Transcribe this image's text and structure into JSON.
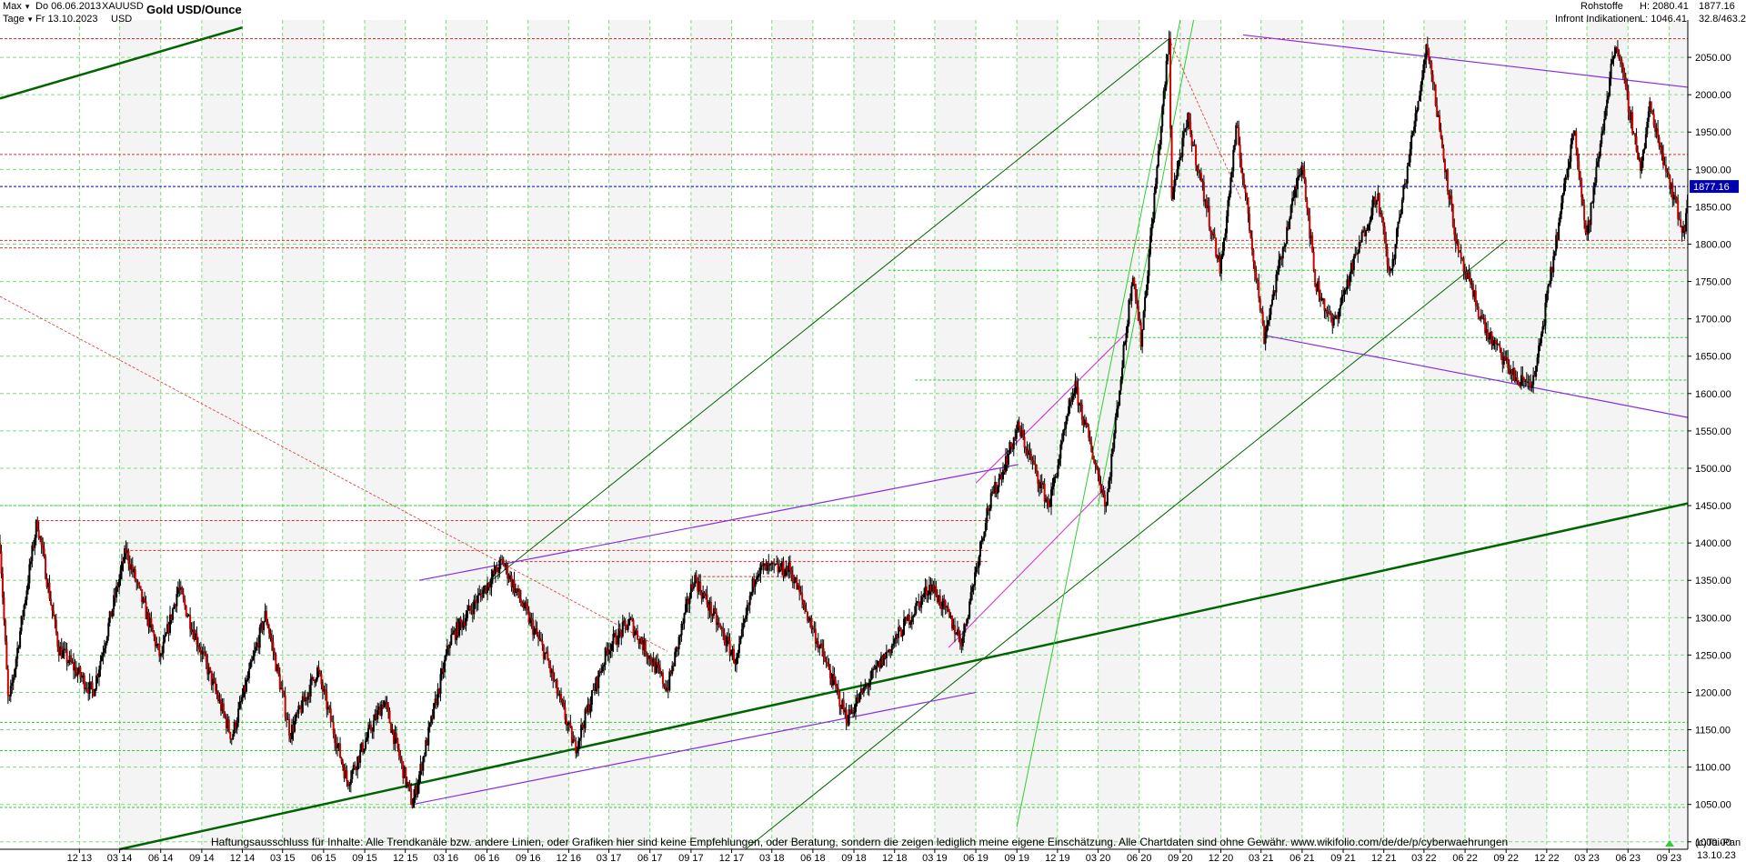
{
  "header": {
    "range_label": "Max",
    "interval_label": "Tage",
    "date_from": "Do 06.06.2013",
    "date_to": "Fr 13.10.2023",
    "symbol": "XAUUSD",
    "currency": "USD",
    "title": "Gold USD/Ounce",
    "category": "Rohstoffe",
    "source": "Infront Indikationen",
    "high_label": "H: 2080.41",
    "low_label": "L: 1046.41",
    "last_price": "1877.16",
    "change_label": "32.8/463.2"
  },
  "footer": {
    "disclaimer": "Haftungsausschluss für Inhalte: Alle Trendkanäle bzw. andere Linien, oder Grafiken hier sind keine Empfehlungen, oder Beratung, sondern die zeigen lediglich meine eigene Einschätzung. Alle Chartdaten sind ohne Gewähr.  www.wikifolio.com/de/de/p/cyberwaehrungen",
    "copyright": "(c)Tai-Pan",
    "last_date": "13.10.23"
  },
  "colors": {
    "grid": "#7ddc7d",
    "candle": "#000000",
    "candle_accent": "#cc0000",
    "trend_green": "#006400",
    "trend_light": "#32cd32",
    "trend_purple": "#8a2be2",
    "trend_magenta": "#e020e0",
    "resistance_red": "#e03030",
    "last_price_line": "#0000cc",
    "price_badge_bg": "#0000aa"
  },
  "chart_data": {
    "type": "candlestick",
    "title": "Gold USD/Ounce",
    "y_axis_ticks": [
      1000,
      1050,
      1100,
      1150,
      1200,
      1250,
      1300,
      1350,
      1400,
      1450,
      1500,
      1550,
      1600,
      1650,
      1700,
      1750,
      1800,
      1850,
      1900,
      1950,
      2000,
      2050
    ],
    "x_axis_ticks": [
      "12 13",
      "03 14",
      "06 14",
      "09 14",
      "12 14",
      "03 15",
      "06 15",
      "09 15",
      "12 15",
      "03 16",
      "06 16",
      "09 16",
      "12 16",
      "03 17",
      "06 17",
      "09 17",
      "12 17",
      "03 18",
      "06 18",
      "09 18",
      "12 18",
      "03 19",
      "06 19",
      "09 19",
      "12 19",
      "03 20",
      "06 20",
      "09 20",
      "12 20",
      "03 21",
      "06 21",
      "09 21",
      "12 21",
      "03 22",
      "06 22",
      "09 22",
      "12 22",
      "03 23",
      "06 23",
      "09 23"
    ],
    "x_range": [
      "2013-06-06",
      "2023-10-13"
    ],
    "ylim": [
      990,
      2100
    ],
    "grid": true,
    "high": 2080.41,
    "low": 1046.41,
    "last": 1877.16,
    "price_path": [
      [
        "2013-06-06",
        1400
      ],
      [
        "2013-06-25",
        1180
      ],
      [
        "2013-08-28",
        1430
      ],
      [
        "2013-10-15",
        1260
      ],
      [
        "2013-12-31",
        1200
      ],
      [
        "2014-03-15",
        1390
      ],
      [
        "2014-06-01",
        1245
      ],
      [
        "2014-07-10",
        1340
      ],
      [
        "2014-09-15",
        1230
      ],
      [
        "2014-11-07",
        1140
      ],
      [
        "2015-01-22",
        1305
      ],
      [
        "2015-03-18",
        1145
      ],
      [
        "2015-05-18",
        1230
      ],
      [
        "2015-07-24",
        1080
      ],
      [
        "2015-10-14",
        1190
      ],
      [
        "2015-12-17",
        1050
      ],
      [
        "2016-03-10",
        1270
      ],
      [
        "2016-07-06",
        1375
      ],
      [
        "2016-10-10",
        1250
      ],
      [
        "2016-12-15",
        1125
      ],
      [
        "2017-02-27",
        1260
      ],
      [
        "2017-04-17",
        1295
      ],
      [
        "2017-07-10",
        1205
      ],
      [
        "2017-09-08",
        1355
      ],
      [
        "2017-12-12",
        1240
      ],
      [
        "2018-01-25",
        1365
      ],
      [
        "2018-04-11",
        1365
      ],
      [
        "2018-08-16",
        1165
      ],
      [
        "2018-10-26",
        1235
      ],
      [
        "2019-02-20",
        1345
      ],
      [
        "2019-05-01",
        1268
      ],
      [
        "2019-06-25",
        1440
      ],
      [
        "2019-09-04",
        1555
      ],
      [
        "2019-11-12",
        1450
      ],
      [
        "2020-01-08",
        1611
      ],
      [
        "2020-03-19",
        1451
      ],
      [
        "2020-05-18",
        1765
      ],
      [
        "2020-06-05",
        1670
      ],
      [
        "2020-08-07",
        2075
      ],
      [
        "2020-08-12",
        1865
      ],
      [
        "2020-09-18",
        1965
      ],
      [
        "2020-11-30",
        1765
      ],
      [
        "2021-01-05",
        1955
      ],
      [
        "2021-03-08",
        1676
      ],
      [
        "2021-06-01",
        1915
      ],
      [
        "2021-06-30",
        1750
      ],
      [
        "2021-08-09",
        1690
      ],
      [
        "2021-11-16",
        1870
      ],
      [
        "2021-12-15",
        1755
      ],
      [
        "2022-03-08",
        2070
      ],
      [
        "2022-05-16",
        1787
      ],
      [
        "2022-07-21",
        1680
      ],
      [
        "2022-09-28",
        1615
      ],
      [
        "2022-11-03",
        1618
      ],
      [
        "2023-02-01",
        1960
      ],
      [
        "2023-02-28",
        1805
      ],
      [
        "2023-05-04",
        2075
      ],
      [
        "2023-06-30",
        1900
      ],
      [
        "2023-07-20",
        1985
      ],
      [
        "2023-10-05",
        1810
      ],
      [
        "2023-10-13",
        1877.16
      ]
    ]
  }
}
